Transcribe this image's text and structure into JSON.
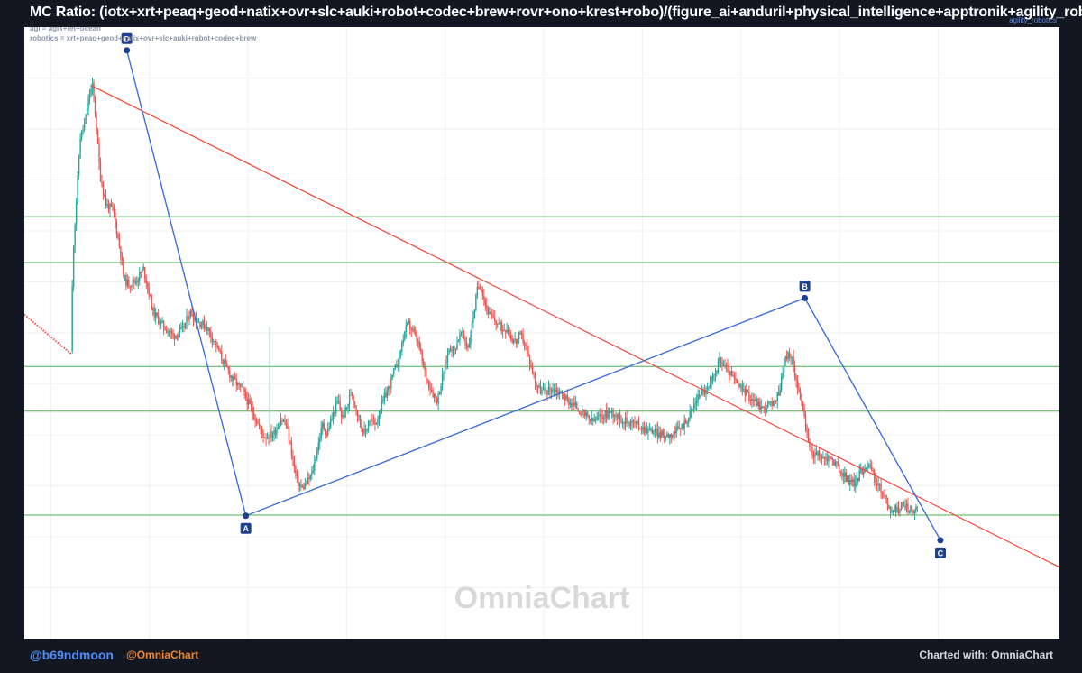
{
  "header": {
    "title": "MC Ratio: (iotx+xrt+peaq+geod+natix+ovr+slc+auki+robot+codec+brew+rovr+ono+krest+robo)/(figure_ai+anduril+physical_intelligence+apptronik+agility_robotics)",
    "secondary": "agility_robotics"
  },
  "footer": {
    "handle": "@b69ndmoon",
    "brand": "@OmniaChart",
    "credit": "Charted with: OmniaChart"
  },
  "chart_data": {
    "type": "candlestick",
    "watermark": "OmniaChart",
    "definitions": [
      "agi = agix+fet+ocean",
      "robotics = xrt+peaq+geod+natix+ovr+slc+auki+robot+codec+brew"
    ],
    "ylim": [
      0,
      100
    ],
    "xlim": [
      0,
      100
    ],
    "up_color": "#26a69a",
    "down_color": "#ef5350",
    "horizontal_levels": {
      "color": "#4caf50",
      "values": [
        69,
        61.5,
        44.5,
        37.2,
        20.2
      ]
    },
    "descending_trendline": {
      "color": "#f44336",
      "points": [
        [
          6.5,
          90.4
        ],
        [
          100,
          11.7
        ]
      ]
    },
    "abcd_pattern": {
      "color": "#3f6fd8",
      "points": [
        {
          "label": "D",
          "x": 9.9,
          "y": 96.2
        },
        {
          "label": "A",
          "x": 21.4,
          "y": 20.1
        },
        {
          "label": "B",
          "x": 75.4,
          "y": 55.7
        },
        {
          "label": "C",
          "x": 88.5,
          "y": 16.1
        }
      ]
    },
    "early_series": {
      "color": "#ef5350",
      "points": [
        [
          0,
          53
        ],
        [
          4.5,
          46.6
        ]
      ]
    },
    "price_path": [
      [
        4.5,
        47
      ],
      [
        4.7,
        63
      ],
      [
        5.0,
        71
      ],
      [
        5.4,
        82
      ],
      [
        5.8,
        84
      ],
      [
        6.3,
        89
      ],
      [
        6.6,
        90.4
      ],
      [
        6.9,
        85
      ],
      [
        7.3,
        76
      ],
      [
        7.9,
        71
      ],
      [
        8.6,
        70
      ],
      [
        9.0,
        66
      ],
      [
        9.4,
        62
      ],
      [
        9.6,
        59
      ],
      [
        10.0,
        58
      ],
      [
        10.8,
        58.5
      ],
      [
        11.5,
        60.5
      ],
      [
        12.0,
        57
      ],
      [
        12.4,
        53.5
      ],
      [
        13.0,
        52
      ],
      [
        13.5,
        51
      ],
      [
        14.4,
        49.5
      ],
      [
        15.3,
        50.5
      ],
      [
        16.0,
        53.5
      ],
      [
        16.7,
        52
      ],
      [
        17.6,
        51
      ],
      [
        18.4,
        48.5
      ],
      [
        19.3,
        45
      ],
      [
        20.1,
        42.5
      ],
      [
        21.1,
        40.5
      ],
      [
        21.8,
        38
      ],
      [
        22.6,
        35
      ],
      [
        23.2,
        33
      ],
      [
        24.1,
        33.5
      ],
      [
        24.8,
        36
      ],
      [
        25.3,
        35
      ],
      [
        25.7,
        31.5
      ],
      [
        26.3,
        26
      ],
      [
        26.8,
        24.5
      ],
      [
        27.3,
        25.5
      ],
      [
        27.8,
        27
      ],
      [
        28.3,
        31
      ],
      [
        28.8,
        35
      ],
      [
        29.2,
        33.5
      ],
      [
        29.7,
        36
      ],
      [
        30.3,
        39
      ],
      [
        30.7,
        36
      ],
      [
        31.1,
        37.5
      ],
      [
        31.6,
        40.5
      ],
      [
        32.0,
        38
      ],
      [
        32.5,
        35
      ],
      [
        32.9,
        33.5
      ],
      [
        33.4,
        36
      ],
      [
        33.9,
        35
      ],
      [
        34.4,
        37.5
      ],
      [
        34.8,
        39.5
      ],
      [
        35.2,
        41
      ],
      [
        35.7,
        43.5
      ],
      [
        36.2,
        46
      ],
      [
        36.7,
        50
      ],
      [
        37.1,
        51.5
      ],
      [
        37.6,
        50
      ],
      [
        38.1,
        48
      ],
      [
        38.6,
        44
      ],
      [
        39.0,
        42
      ],
      [
        39.5,
        40
      ],
      [
        39.9,
        39
      ],
      [
        40.3,
        42
      ],
      [
        40.7,
        45
      ],
      [
        41.1,
        48
      ],
      [
        41.5,
        47
      ],
      [
        41.9,
        49
      ],
      [
        42.2,
        50
      ],
      [
        42.5,
        49
      ],
      [
        42.9,
        47.5
      ],
      [
        43.4,
        53
      ],
      [
        43.8,
        57.5
      ],
      [
        44.1,
        58
      ],
      [
        44.5,
        55
      ],
      [
        44.9,
        53
      ],
      [
        45.4,
        52
      ],
      [
        45.8,
        51.5
      ],
      [
        46.2,
        50.5
      ],
      [
        46.6,
        51
      ],
      [
        47.1,
        49
      ],
      [
        47.5,
        48.5
      ],
      [
        47.9,
        49.5
      ],
      [
        48.3,
        48.5
      ],
      [
        48.7,
        46
      ],
      [
        49.1,
        43.5
      ],
      [
        49.5,
        41.5
      ],
      [
        49.9,
        40.5
      ],
      [
        50.5,
        40.5
      ],
      [
        51.0,
        41
      ],
      [
        51.6,
        40.5
      ],
      [
        52.2,
        39.5
      ],
      [
        52.8,
        38.5
      ],
      [
        53.3,
        38
      ],
      [
        53.8,
        37
      ],
      [
        54.3,
        36.3
      ],
      [
        54.8,
        35.5
      ],
      [
        55.4,
        36
      ],
      [
        55.9,
        36.5
      ],
      [
        56.5,
        37
      ],
      [
        57.1,
        36.8
      ],
      [
        57.6,
        36
      ],
      [
        58.1,
        35.5
      ],
      [
        58.6,
        35.5
      ],
      [
        59.2,
        35
      ],
      [
        59.7,
        34.5
      ],
      [
        60.2,
        34.2
      ],
      [
        60.8,
        34
      ],
      [
        61.3,
        33.5
      ],
      [
        61.8,
        33.2
      ],
      [
        62.4,
        33.5
      ],
      [
        62.9,
        33.8
      ],
      [
        63.4,
        34.5
      ],
      [
        63.9,
        35.5
      ],
      [
        64.4,
        37
      ],
      [
        64.9,
        39
      ],
      [
        65.4,
        40.5
      ],
      [
        65.9,
        40.5
      ],
      [
        66.3,
        41.5
      ],
      [
        66.7,
        43.5
      ],
      [
        67.1,
        45.5
      ],
      [
        67.5,
        45
      ],
      [
        67.9,
        44
      ],
      [
        68.3,
        43
      ],
      [
        68.7,
        42
      ],
      [
        69.1,
        41
      ],
      [
        69.6,
        40.5
      ],
      [
        70.1,
        39.5
      ],
      [
        70.6,
        39
      ],
      [
        71.1,
        38
      ],
      [
        71.5,
        37.5
      ],
      [
        71.9,
        38.5
      ],
      [
        72.3,
        38
      ],
      [
        72.7,
        39.5
      ],
      [
        73.0,
        41
      ],
      [
        73.3,
        44.5
      ],
      [
        73.7,
        46.5
      ],
      [
        74.1,
        46
      ],
      [
        74.5,
        43
      ],
      [
        74.9,
        40
      ],
      [
        75.3,
        36.5
      ],
      [
        75.7,
        32.5
      ],
      [
        76.1,
        30.5
      ],
      [
        76.6,
        30
      ],
      [
        77.1,
        29.5
      ],
      [
        77.6,
        29.5
      ],
      [
        78.0,
        29.5
      ],
      [
        78.4,
        28.5
      ],
      [
        78.8,
        27.5
      ],
      [
        79.3,
        26.5
      ],
      [
        79.8,
        25.5
      ],
      [
        80.3,
        25.5
      ],
      [
        80.7,
        27
      ],
      [
        81.1,
        28
      ],
      [
        81.5,
        28.5
      ],
      [
        81.9,
        27.5
      ],
      [
        82.3,
        25.5
      ],
      [
        82.7,
        24.5
      ],
      [
        83.1,
        23
      ],
      [
        83.5,
        21.5
      ],
      [
        83.9,
        21
      ],
      [
        84.3,
        21
      ],
      [
        84.7,
        21.5
      ],
      [
        85.1,
        22
      ],
      [
        85.5,
        21
      ],
      [
        85.9,
        21
      ],
      [
        86.3,
        21.2
      ]
    ]
  }
}
